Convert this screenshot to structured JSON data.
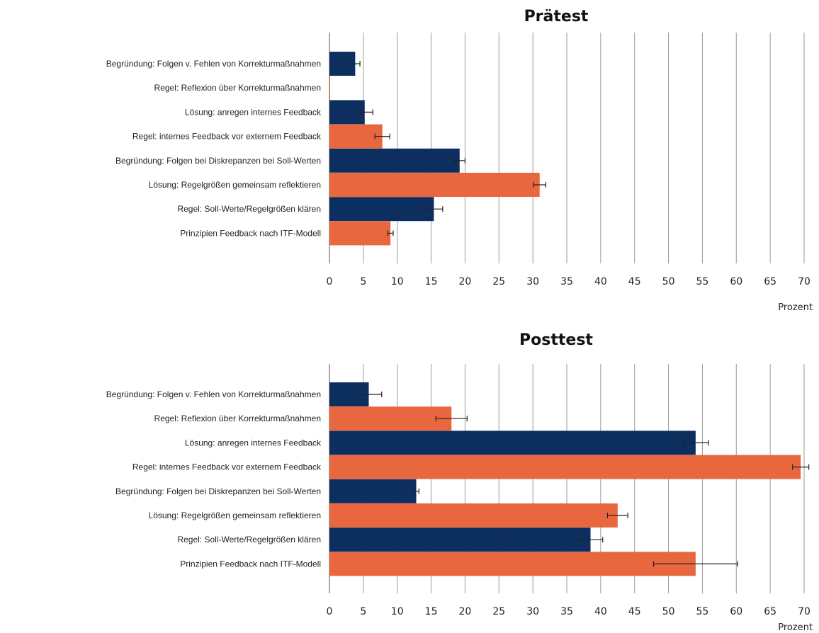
{
  "colors": {
    "dark": "#0d2f5f",
    "orange": "#e8673f",
    "grid": "#9a9a9a",
    "error": "#222222"
  },
  "chart_data": [
    {
      "type": "bar",
      "orientation": "horizontal",
      "title": "Prätest",
      "xlabel": "Prozent",
      "xlim": [
        0,
        70
      ],
      "xticks": [
        0,
        5,
        10,
        15,
        20,
        25,
        30,
        35,
        40,
        45,
        50,
        55,
        60,
        65,
        70
      ],
      "grid": true,
      "categories": [
        "Begründung: Folgen v. Fehlen von Korrekturmaßnahmen",
        "Regel: Reflexion über Korrekturmaßnahmen",
        "Lösung: anregen internes Feedback",
        "Regel: internes Feedback vor externem Feedback",
        "Begründung: Folgen bei Diskrepanzen bei Soll-Werten",
        "Lösung: Regelgrößen gemeinsam reflektieren",
        "Regel: Soll-Werte/Regelgrößen klären",
        "Prinzipien Feedback nach ITF-Modell"
      ],
      "bar_colors": [
        "dark",
        "orange",
        "dark",
        "orange",
        "dark",
        "orange",
        "dark",
        "orange"
      ],
      "values": [
        3.8,
        0,
        5.2,
        7.8,
        19.2,
        31,
        15.4,
        9
      ],
      "errors": [
        0.7,
        0,
        1.2,
        1.1,
        0.8,
        0.9,
        1.3,
        0.4
      ]
    },
    {
      "type": "bar",
      "orientation": "horizontal",
      "title": "Posttest",
      "xlabel": "Prozent",
      "xlim": [
        0,
        70
      ],
      "xticks": [
        0,
        5,
        10,
        15,
        20,
        25,
        30,
        35,
        40,
        45,
        50,
        55,
        60,
        65,
        70
      ],
      "grid": true,
      "categories": [
        "Begründung: Folgen v. Fehlen von Korrekturmaßnahmen",
        "Regel: Reflexion über Korrekturmaßnahmen",
        "Lösung: anregen internes Feedback",
        "Regel: internes Feedback vor externem Feedback",
        "Begründung: Folgen bei Diskrepanzen bei Soll-Werten",
        "Lösung: Regelgrößen gemeinsam reflektieren",
        "Regel: Soll-Werte/Regelgrößen klären",
        "Prinzipien Feedback nach ITF-Modell"
      ],
      "bar_colors": [
        "dark",
        "orange",
        "dark",
        "orange",
        "dark",
        "orange",
        "dark",
        "orange"
      ],
      "values": [
        5.8,
        18,
        54,
        69.5,
        12.8,
        42.5,
        38.5,
        54
      ],
      "errors": [
        1.9,
        2.3,
        1.9,
        1.2,
        0.4,
        1.5,
        1.8,
        6.2
      ]
    }
  ]
}
